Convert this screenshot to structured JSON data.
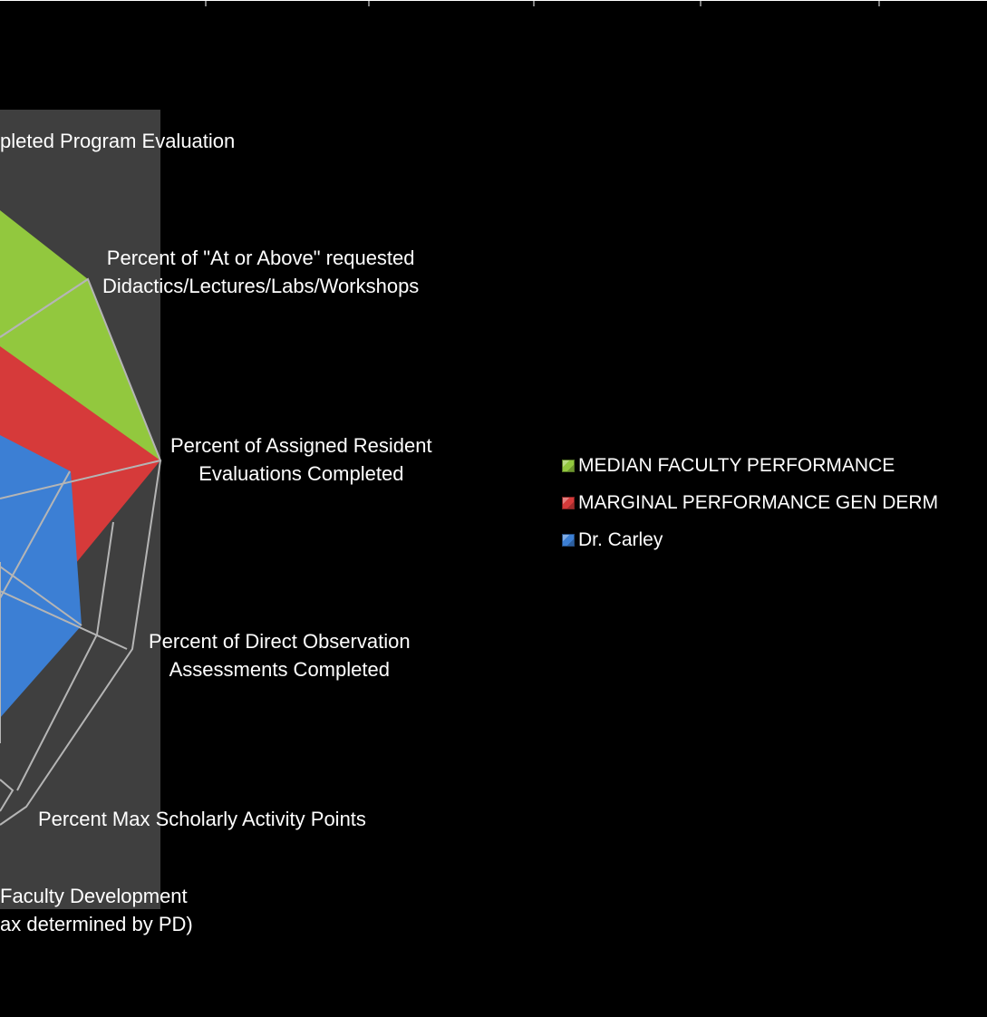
{
  "chart_data": {
    "type": "radar",
    "title": "",
    "axes": [
      "Completed Program Evaluation",
      "Percent of \"At or Above\" requested Didactics/Lectures/Labs/Workshops",
      "Percent of Assigned Resident Evaluations Completed",
      "Percent of Direct Observation Assessments Completed",
      "Percent Max Scholarly Activity Points",
      "Faculty Development (Max determined by PD)"
    ],
    "axis_label_lines": [
      [
        "pleted Program Evaluation"
      ],
      [
        "Percent of \"At or Above\" requested",
        "Didactics/Lectures/Labs/Workshops"
      ],
      [
        "Percent of Assigned Resident",
        "Evaluations Completed"
      ],
      [
        "Percent of Direct Observation",
        "Assessments Completed"
      ],
      [
        "Percent Max Scholarly Activity Points"
      ],
      [
        "Faculty Development",
        "ax determined by PD)"
      ]
    ],
    "series": [
      {
        "name": "MEDIAN FACULTY PERFORMANCE",
        "color": "#92c83e",
        "values": [
          1.0,
          1.0,
          1.0,
          null,
          null,
          null
        ]
      },
      {
        "name": "MARGINAL PERFORMANCE GEN DERM",
        "color": "#d63a3a",
        "values": [
          null,
          0.55,
          1.0,
          null,
          null,
          null
        ]
      },
      {
        "name": "Dr. Carley",
        "color": "#3c7fd4",
        "values": [
          null,
          null,
          0.47,
          0.58,
          null,
          null
        ]
      }
    ],
    "legend_position": "right",
    "grid": true
  },
  "legend": {
    "items": [
      {
        "label": "MEDIAN FACULTY PERFORMANCE",
        "color": "#92c83e"
      },
      {
        "label": "MARGINAL PERFORMANCE GEN DERM",
        "color": "#d63a3a"
      },
      {
        "label": "Dr. Carley",
        "color": "#3c7fd4"
      }
    ]
  }
}
